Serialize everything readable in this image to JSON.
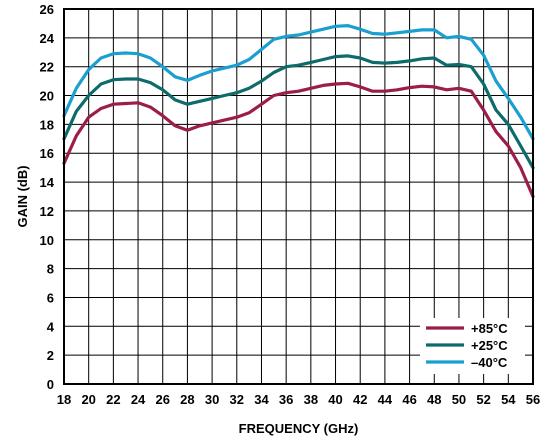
{
  "chart_data": {
    "type": "line",
    "title": "",
    "xlabel": "FREQUENCY (GHz)",
    "ylabel": "GAIN (dB)",
    "xlim": [
      18,
      56
    ],
    "ylim": [
      0,
      26
    ],
    "x_ticks": [
      "18",
      "20",
      "22",
      "24",
      "26",
      "28",
      "30",
      "32",
      "34",
      "36",
      "38",
      "40",
      "42",
      "44",
      "46",
      "48",
      "50",
      "52",
      "54",
      "56"
    ],
    "y_ticks": [
      "0",
      "2",
      "4",
      "6",
      "8",
      "10",
      "12",
      "14",
      "16",
      "18",
      "20",
      "22",
      "24",
      "26"
    ],
    "grid": true,
    "legend_position": "bottom-right",
    "series": [
      {
        "name": "+85°C",
        "color": "#9b1d4a",
        "points": [
          [
            18,
            15.3
          ],
          [
            19,
            17.2
          ],
          [
            20,
            18.5
          ],
          [
            21,
            19.1
          ],
          [
            22,
            19.4
          ],
          [
            23,
            19.45
          ],
          [
            24,
            19.5
          ],
          [
            25,
            19.2
          ],
          [
            26,
            18.6
          ],
          [
            27,
            17.9
          ],
          [
            28,
            17.6
          ],
          [
            29,
            17.9
          ],
          [
            30,
            18.1
          ],
          [
            31,
            18.3
          ],
          [
            32,
            18.5
          ],
          [
            33,
            18.8
          ],
          [
            34,
            19.4
          ],
          [
            35,
            20.0
          ],
          [
            36,
            20.2
          ],
          [
            37,
            20.3
          ],
          [
            38,
            20.5
          ],
          [
            39,
            20.7
          ],
          [
            40,
            20.8
          ],
          [
            41,
            20.85
          ],
          [
            42,
            20.6
          ],
          [
            43,
            20.3
          ],
          [
            44,
            20.3
          ],
          [
            45,
            20.4
          ],
          [
            46,
            20.55
          ],
          [
            47,
            20.65
          ],
          [
            48,
            20.6
          ],
          [
            49,
            20.4
          ],
          [
            50,
            20.5
          ],
          [
            51,
            20.3
          ],
          [
            52,
            19.0
          ],
          [
            53,
            17.5
          ],
          [
            54,
            16.5
          ],
          [
            55,
            15.0
          ],
          [
            56,
            13.0
          ]
        ]
      },
      {
        "name": "+25°C",
        "color": "#0e6b6b",
        "points": [
          [
            18,
            17.0
          ],
          [
            19,
            18.9
          ],
          [
            20,
            20.0
          ],
          [
            21,
            20.8
          ],
          [
            22,
            21.1
          ],
          [
            23,
            21.15
          ],
          [
            24,
            21.15
          ],
          [
            25,
            20.9
          ],
          [
            26,
            20.4
          ],
          [
            27,
            19.7
          ],
          [
            28,
            19.4
          ],
          [
            29,
            19.6
          ],
          [
            30,
            19.8
          ],
          [
            31,
            20.0
          ],
          [
            32,
            20.2
          ],
          [
            33,
            20.5
          ],
          [
            34,
            21.0
          ],
          [
            35,
            21.6
          ],
          [
            36,
            22.0
          ],
          [
            37,
            22.1
          ],
          [
            38,
            22.3
          ],
          [
            39,
            22.5
          ],
          [
            40,
            22.7
          ],
          [
            41,
            22.75
          ],
          [
            42,
            22.6
          ],
          [
            43,
            22.3
          ],
          [
            44,
            22.25
          ],
          [
            45,
            22.3
          ],
          [
            46,
            22.4
          ],
          [
            47,
            22.55
          ],
          [
            48,
            22.6
          ],
          [
            49,
            22.1
          ],
          [
            50,
            22.15
          ],
          [
            51,
            22.0
          ],
          [
            52,
            20.8
          ],
          [
            53,
            19.0
          ],
          [
            54,
            18.0
          ],
          [
            55,
            16.5
          ],
          [
            56,
            15.0
          ]
        ]
      },
      {
        "name": "–40°C",
        "color": "#1a9fd0",
        "points": [
          [
            18,
            18.6
          ],
          [
            19,
            20.5
          ],
          [
            20,
            21.8
          ],
          [
            21,
            22.6
          ],
          [
            22,
            22.9
          ],
          [
            23,
            22.95
          ],
          [
            24,
            22.9
          ],
          [
            25,
            22.6
          ],
          [
            26,
            22.0
          ],
          [
            27,
            21.3
          ],
          [
            28,
            21.05
          ],
          [
            29,
            21.4
          ],
          [
            30,
            21.7
          ],
          [
            31,
            21.9
          ],
          [
            32,
            22.1
          ],
          [
            33,
            22.5
          ],
          [
            34,
            23.2
          ],
          [
            35,
            23.9
          ],
          [
            36,
            24.1
          ],
          [
            37,
            24.2
          ],
          [
            38,
            24.4
          ],
          [
            39,
            24.6
          ],
          [
            40,
            24.8
          ],
          [
            41,
            24.85
          ],
          [
            42,
            24.6
          ],
          [
            43,
            24.3
          ],
          [
            44,
            24.25
          ],
          [
            45,
            24.35
          ],
          [
            46,
            24.45
          ],
          [
            47,
            24.55
          ],
          [
            48,
            24.55
          ],
          [
            49,
            24.0
          ],
          [
            50,
            24.1
          ],
          [
            51,
            23.9
          ],
          [
            52,
            22.8
          ],
          [
            53,
            21.0
          ],
          [
            54,
            19.8
          ],
          [
            55,
            18.5
          ],
          [
            56,
            17.0
          ]
        ]
      }
    ]
  }
}
